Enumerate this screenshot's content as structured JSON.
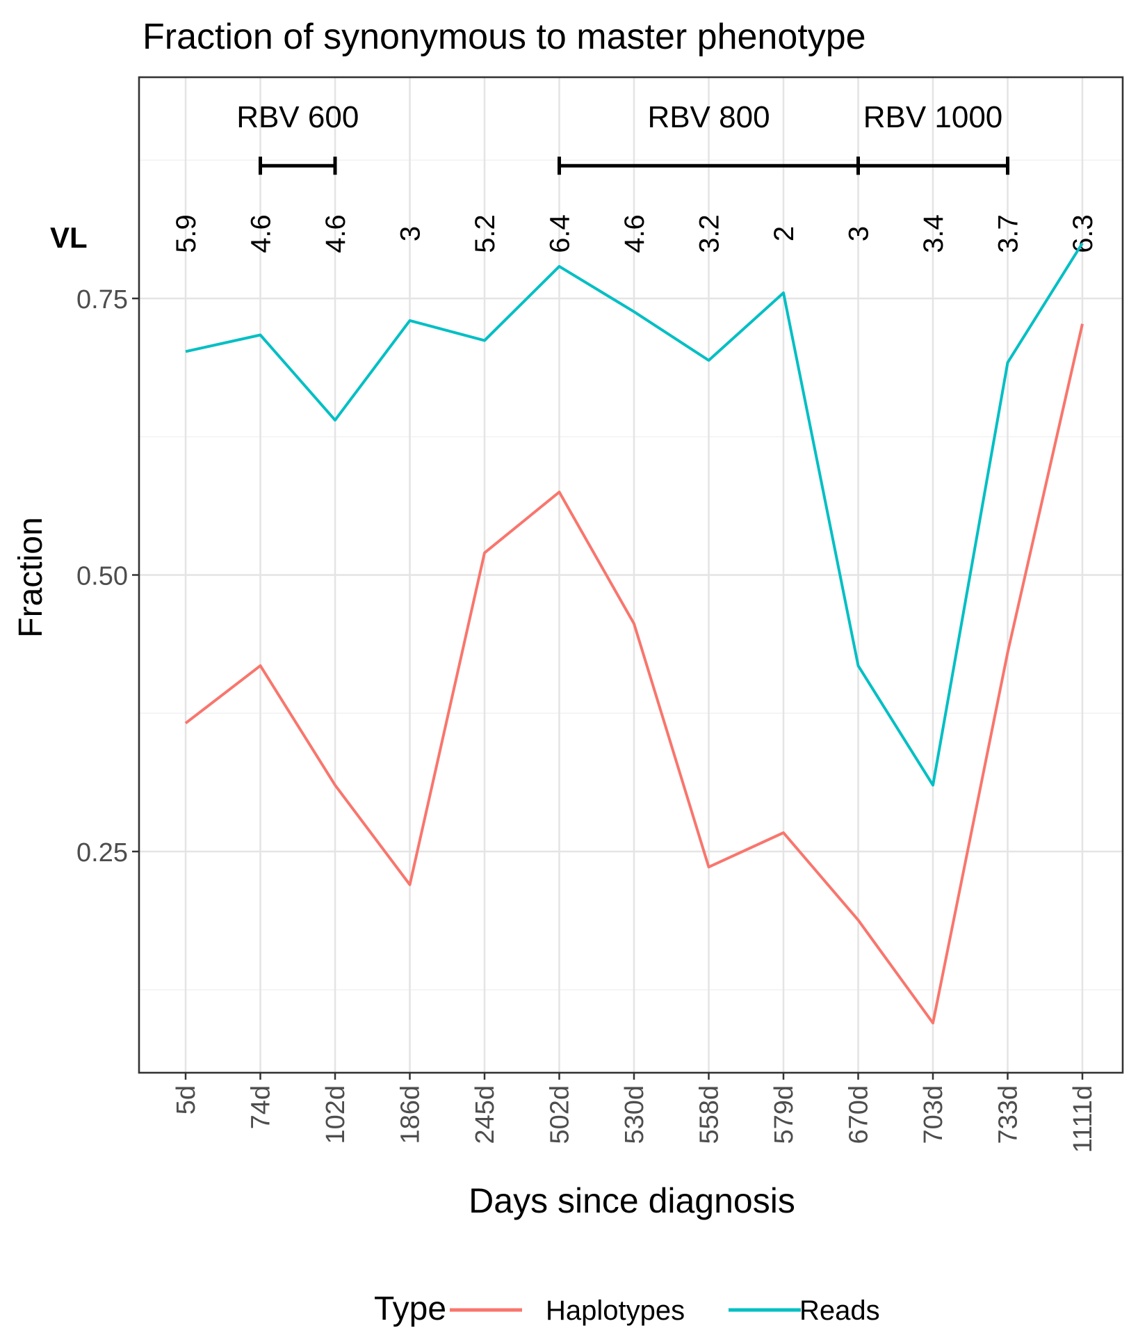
{
  "chart_data": {
    "type": "line",
    "title": "Fraction of synonymous to master phenotype",
    "xlabel": "Days since diagnosis",
    "ylabel": "Fraction",
    "categories": [
      "5d",
      "74d",
      "102d",
      "186d",
      "245d",
      "502d",
      "530d",
      "558d",
      "579d",
      "670d",
      "703d",
      "733d",
      "1111d"
    ],
    "ylim": [
      0.05,
      0.95
    ],
    "yticks": [
      0.25,
      0.5,
      0.75
    ],
    "ytick_labels": [
      "0.25",
      "0.50",
      "0.75"
    ],
    "yminor": [
      0.125,
      0.375,
      0.625,
      0.875
    ],
    "series": [
      {
        "name": "Haplotypes",
        "color": "#F8766D",
        "values": [
          0.366,
          0.418,
          0.31,
          0.22,
          0.52,
          0.575,
          0.456,
          0.236,
          0.267,
          0.188,
          0.095,
          0.43,
          0.727
        ]
      },
      {
        "name": "Reads",
        "color": "#00BFC4",
        "values": [
          0.702,
          0.717,
          0.64,
          0.73,
          0.712,
          0.779,
          0.738,
          0.694,
          0.755,
          0.418,
          0.31,
          0.692,
          0.8
        ]
      }
    ],
    "vl_label": "VL",
    "vl_values": [
      "5.9",
      "4.6",
      "4.6",
      "3",
      "5.2",
      "6.4",
      "4.6",
      "3.2",
      "2",
      "3",
      "3.4",
      "3.7",
      "6.3"
    ],
    "treatments": [
      {
        "label": "RBV 600",
        "start": "74d",
        "end": "102d"
      },
      {
        "label": "RBV 800",
        "start": "502d",
        "end": "670d"
      },
      {
        "label": "RBV 1000",
        "start": "670d",
        "end": "733d"
      }
    ],
    "treatment_level": 0.87,
    "legend": {
      "title": "Type",
      "position": "bottom"
    },
    "grid": true
  }
}
